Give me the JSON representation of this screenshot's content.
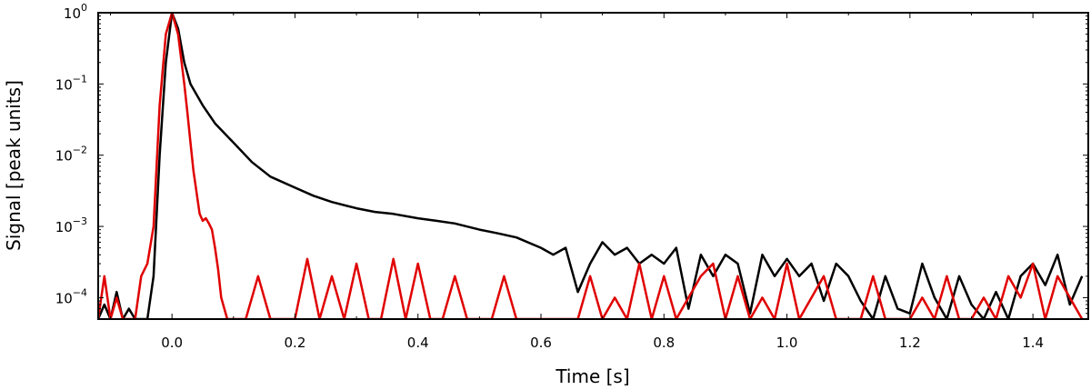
{
  "chart_data": {
    "type": "line",
    "title": "",
    "xlabel": "Time [s]",
    "ylabel": "Signal [peak units]",
    "xlim": [
      -0.12,
      1.49
    ],
    "ylim": [
      5e-05,
      1.0
    ],
    "yscale": "log",
    "grid": false,
    "legend": "none",
    "x_ticks": [
      {
        "value": 0.0,
        "label": "0.0"
      },
      {
        "value": 0.2,
        "label": "0.2"
      },
      {
        "value": 0.4,
        "label": "0.4"
      },
      {
        "value": 0.6,
        "label": "0.6"
      },
      {
        "value": 0.8,
        "label": "0.8"
      },
      {
        "value": 1.0,
        "label": "1.0"
      },
      {
        "value": 1.2,
        "label": "1.2"
      },
      {
        "value": 1.4,
        "label": "1.4"
      }
    ],
    "y_ticks": [
      {
        "value": 1.0,
        "base": "10",
        "exp": "0"
      },
      {
        "value": 0.1,
        "base": "10",
        "exp": "−1"
      },
      {
        "value": 0.01,
        "base": "10",
        "exp": "−2"
      },
      {
        "value": 0.001,
        "base": "10",
        "exp": "−3"
      },
      {
        "value": 0.0001,
        "base": "10",
        "exp": "−4"
      }
    ],
    "series": [
      {
        "color": "#000000",
        "x": [
          -0.12,
          -0.11,
          -0.1,
          -0.09,
          -0.08,
          -0.07,
          -0.06,
          -0.05,
          -0.04,
          -0.03,
          -0.02,
          -0.01,
          0.0,
          0.01,
          0.02,
          0.03,
          0.05,
          0.07,
          0.1,
          0.13,
          0.16,
          0.2,
          0.23,
          0.26,
          0.3,
          0.33,
          0.36,
          0.4,
          0.43,
          0.46,
          0.5,
          0.53,
          0.56,
          0.6,
          0.62,
          0.64,
          0.66,
          0.68,
          0.7,
          0.72,
          0.74,
          0.76,
          0.78,
          0.8,
          0.82,
          0.84,
          0.86,
          0.88,
          0.9,
          0.92,
          0.94,
          0.96,
          0.98,
          1.0,
          1.02,
          1.04,
          1.06,
          1.08,
          1.1,
          1.12,
          1.14,
          1.16,
          1.18,
          1.2,
          1.22,
          1.24,
          1.26,
          1.28,
          1.3,
          1.32,
          1.34,
          1.36,
          1.38,
          1.4,
          1.42,
          1.44,
          1.46,
          1.48
        ],
        "y": [
          5e-05,
          8e-05,
          5e-05,
          0.00012,
          5e-05,
          7e-05,
          5e-05,
          5e-05,
          5e-05,
          0.0002,
          0.01,
          0.2,
          1.0,
          0.6,
          0.2,
          0.1,
          0.05,
          0.028,
          0.015,
          0.008,
          0.005,
          0.0035,
          0.0027,
          0.0022,
          0.0018,
          0.0016,
          0.0015,
          0.0013,
          0.0012,
          0.0011,
          0.0009,
          0.0008,
          0.0007,
          0.0005,
          0.0004,
          0.0005,
          0.00012,
          0.0003,
          0.0006,
          0.0004,
          0.0005,
          0.0003,
          0.0004,
          0.0003,
          0.0005,
          7e-05,
          0.0004,
          0.0002,
          0.0004,
          0.0003,
          6e-05,
          0.0004,
          0.0002,
          0.00035,
          0.0002,
          0.0003,
          9e-05,
          0.0003,
          0.0002,
          9e-05,
          5e-05,
          0.0002,
          7e-05,
          6e-05,
          0.0003,
          0.0001,
          5e-05,
          0.0002,
          8e-05,
          5e-05,
          0.00012,
          5e-05,
          0.0002,
          0.0003,
          0.00015,
          0.0004,
          8e-05,
          0.0002
        ]
      },
      {
        "color": "#e00000",
        "x": [
          -0.12,
          -0.11,
          -0.1,
          -0.09,
          -0.08,
          -0.07,
          -0.06,
          -0.05,
          -0.04,
          -0.03,
          -0.02,
          -0.01,
          0.0,
          0.01,
          0.02,
          0.025,
          0.03,
          0.035,
          0.04,
          0.045,
          0.05,
          0.055,
          0.06,
          0.065,
          0.07,
          0.075,
          0.08,
          0.09,
          0.1,
          0.12,
          0.14,
          0.16,
          0.18,
          0.2,
          0.22,
          0.24,
          0.26,
          0.28,
          0.3,
          0.32,
          0.34,
          0.36,
          0.38,
          0.4,
          0.42,
          0.44,
          0.46,
          0.48,
          0.5,
          0.52,
          0.54,
          0.56,
          0.58,
          0.6,
          0.62,
          0.64,
          0.66,
          0.68,
          0.7,
          0.72,
          0.74,
          0.76,
          0.78,
          0.8,
          0.82,
          0.84,
          0.86,
          0.88,
          0.9,
          0.92,
          0.94,
          0.96,
          0.98,
          1.0,
          1.02,
          1.04,
          1.06,
          1.08,
          1.1,
          1.12,
          1.14,
          1.16,
          1.18,
          1.2,
          1.22,
          1.24,
          1.26,
          1.28,
          1.3,
          1.32,
          1.34,
          1.36,
          1.38,
          1.4,
          1.42,
          1.44,
          1.46,
          1.48
        ],
        "y": [
          5e-05,
          0.0002,
          5e-05,
          0.0001,
          5e-05,
          5e-05,
          5e-05,
          0.0002,
          0.0003,
          0.001,
          0.05,
          0.5,
          1.0,
          0.5,
          0.1,
          0.04,
          0.015,
          0.006,
          0.003,
          0.0015,
          0.0012,
          0.0013,
          0.0011,
          0.0009,
          0.0005,
          0.00025,
          0.0001,
          5e-05,
          5e-05,
          5e-05,
          0.0002,
          5e-05,
          5e-05,
          5e-05,
          0.00035,
          5e-05,
          0.0002,
          5e-05,
          0.0003,
          5e-05,
          5e-05,
          0.00035,
          5e-05,
          0.0003,
          5e-05,
          5e-05,
          0.0002,
          5e-05,
          5e-05,
          5e-05,
          0.0002,
          5e-05,
          5e-05,
          5e-05,
          5e-05,
          5e-05,
          5e-05,
          0.0002,
          5e-05,
          0.0001,
          5e-05,
          0.0003,
          5e-05,
          0.0002,
          5e-05,
          0.0001,
          0.0002,
          0.0003,
          5e-05,
          0.0002,
          5e-05,
          0.0001,
          5e-05,
          0.0003,
          5e-05,
          0.0001,
          0.0002,
          5e-05,
          5e-05,
          5e-05,
          0.0002,
          5e-05,
          5e-05,
          5e-05,
          0.0001,
          5e-05,
          0.0002,
          5e-05,
          5e-05,
          0.0001,
          5e-05,
          0.0002,
          0.0001,
          0.0003,
          5e-05,
          0.0002,
          0.0001,
          5e-05
        ]
      }
    ]
  }
}
